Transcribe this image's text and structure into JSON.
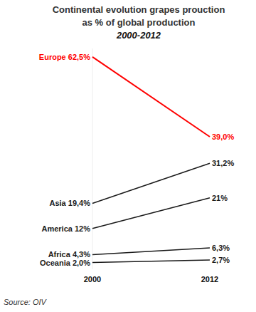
{
  "chart_data": {
    "type": "line",
    "title": "Continental evolution grapes prouction\nas % of global production",
    "subtitle": "2000-2012",
    "annotations": [
      "Source: OIV"
    ],
    "categories": [
      "2000",
      "2012"
    ],
    "series": [
      {
        "name": "Europe",
        "color": "#ff0000",
        "values": [
          62.5,
          39.0
        ],
        "value_labels": [
          "62,5%",
          "39,0%"
        ]
      },
      {
        "name": "Asia",
        "color": "#1a1a1a",
        "values": [
          19.4,
          31.2
        ],
        "value_labels": [
          "19,4%",
          "31,2%"
        ]
      },
      {
        "name": "America",
        "color": "#1a1a1a",
        "values": [
          12,
          21
        ],
        "value_labels": [
          "12%",
          "21%"
        ]
      },
      {
        "name": "Africa",
        "color": "#1a1a1a",
        "values": [
          4.3,
          6.3
        ],
        "value_labels": [
          "4,3%",
          "6,3%"
        ]
      },
      {
        "name": "Oceania",
        "color": "#1a1a1a",
        "values": [
          2.0,
          2.7
        ],
        "value_labels": [
          "2,0%",
          "2,7%"
        ]
      }
    ],
    "ylim": [
      0,
      65
    ],
    "data_labels": true,
    "tick_labels": "x",
    "grid": false
  }
}
